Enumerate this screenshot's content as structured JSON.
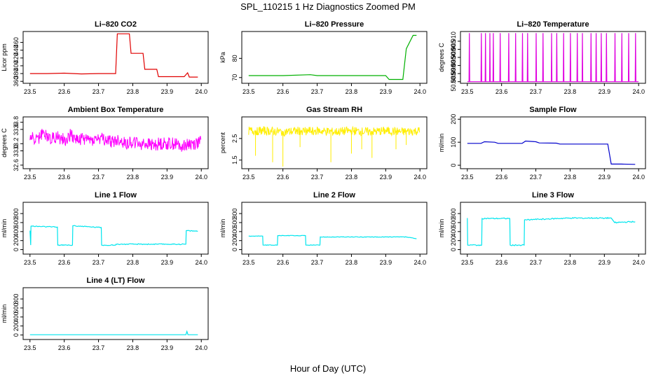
{
  "figure": {
    "title": "SPL_110215  1 Hz Diagnostics Zoomed PM",
    "xlabel": "Hour of Day (UTC)"
  },
  "chart_data": [
    {
      "type": "line",
      "title": "Li–820 CO2",
      "ylabel": "Licor ppm",
      "color": "#e00000",
      "xlim": [
        23.5,
        24.0
      ],
      "ylim": [
        355,
        488
      ],
      "xticks": [
        "23.5",
        "23.6",
        "23.7",
        "23.8",
        "23.9",
        "24.0"
      ],
      "yticks": [
        360,
        380,
        400,
        420,
        440,
        460
      ],
      "x": [
        23.5,
        23.55,
        23.6,
        23.65,
        23.7,
        23.75,
        23.755,
        23.79,
        23.795,
        23.83,
        23.835,
        23.87,
        23.875,
        23.95,
        23.96,
        23.965,
        23.99
      ],
      "values": [
        380,
        380,
        381,
        379,
        380,
        380,
        482,
        482,
        432,
        432,
        391,
        391,
        372,
        372,
        382,
        371,
        371
      ]
    },
    {
      "type": "line",
      "title": "Li–820 Pressure",
      "ylabel": "kPa",
      "color": "#00b000",
      "xlim": [
        23.5,
        24.0
      ],
      "ylim": [
        67,
        94
      ],
      "xticks": [
        "23.5",
        "23.6",
        "23.7",
        "23.8",
        "23.9",
        "24.0"
      ],
      "yticks": [
        70,
        80
      ],
      "x": [
        23.5,
        23.6,
        23.68,
        23.7,
        23.8,
        23.9,
        23.91,
        23.95,
        23.96,
        23.98,
        23.99
      ],
      "values": [
        71,
        71,
        71.5,
        71,
        71,
        71,
        69,
        69,
        85,
        92,
        92
      ]
    },
    {
      "type": "line",
      "title": "Li–820 Temperature",
      "ylabel": "degrees C",
      "color": "#e000e0",
      "xlim": [
        23.5,
        24.0
      ],
      "ylim": [
        50.884,
        50.916
      ],
      "xticks": [
        "23.5",
        "23.6",
        "23.7",
        "23.8",
        "23.9",
        "24.0"
      ],
      "yticks": [
        50.885,
        50.89,
        50.895,
        50.9,
        50.905,
        50.91
      ],
      "ytick_labels": [
        "50.885",
        "50.890",
        "50.895",
        "50.900",
        "50.905",
        "50.910"
      ],
      "x": [
        23.5,
        23.505,
        23.506,
        23.507,
        23.54,
        23.541,
        23.542,
        23.552,
        23.553,
        23.554,
        23.565,
        23.566,
        23.567,
        23.575,
        23.576,
        23.577,
        23.595,
        23.596,
        23.597,
        23.62,
        23.621,
        23.622,
        23.64,
        23.641,
        23.642,
        23.66,
        23.661,
        23.662,
        23.675,
        23.676,
        23.677,
        23.7,
        23.701,
        23.702,
        23.72,
        23.721,
        23.722,
        23.745,
        23.746,
        23.747,
        23.76,
        23.761,
        23.762,
        23.78,
        23.781,
        23.782,
        23.8,
        23.801,
        23.802,
        23.82,
        23.821,
        23.822,
        23.835,
        23.836,
        23.837,
        23.86,
        23.861,
        23.862,
        23.875,
        23.876,
        23.877,
        23.89,
        23.891,
        23.892,
        23.905,
        23.906,
        23.907,
        23.93,
        23.931,
        23.932,
        23.95,
        23.951,
        23.952,
        23.97,
        23.971,
        23.972,
        23.99,
        23.991,
        23.992,
        24.0
      ],
      "values": [
        50.885,
        50.885,
        50.915,
        50.885,
        50.885,
        50.915,
        50.885,
        50.885,
        50.915,
        50.885,
        50.885,
        50.915,
        50.885,
        50.885,
        50.915,
        50.885,
        50.885,
        50.915,
        50.885,
        50.885,
        50.915,
        50.885,
        50.885,
        50.915,
        50.885,
        50.885,
        50.915,
        50.885,
        50.885,
        50.915,
        50.885,
        50.885,
        50.915,
        50.885,
        50.885,
        50.915,
        50.885,
        50.885,
        50.915,
        50.885,
        50.885,
        50.915,
        50.885,
        50.885,
        50.915,
        50.885,
        50.885,
        50.915,
        50.885,
        50.885,
        50.915,
        50.885,
        50.885,
        50.915,
        50.885,
        50.885,
        50.915,
        50.885,
        50.885,
        50.915,
        50.885,
        50.885,
        50.915,
        50.885,
        50.885,
        50.915,
        50.885,
        50.885,
        50.915,
        50.885,
        50.885,
        50.915,
        50.885,
        50.885,
        50.915,
        50.885,
        50.885,
        50.915,
        50.885,
        50.885
      ]
    },
    {
      "type": "line",
      "title": "Ambient Box Temperature",
      "ylabel": "degrees C",
      "color": "#ff00ff",
      "xlim": [
        23.5,
        24.0
      ],
      "ylim": [
        32.5,
        33.95
      ],
      "xticks": [
        "23.5",
        "23.6",
        "23.7",
        "23.8",
        "23.9",
        "24.0"
      ],
      "yticks": [
        32.6,
        33.0,
        33.2,
        33.6,
        33.8
      ],
      "ytick_labels": [
        "32.6",
        "33.0",
        "33.2",
        "33.6",
        "33.8"
      ],
      "x": [
        23.5,
        23.52,
        23.54,
        23.56,
        23.58,
        23.6,
        23.62,
        23.64,
        23.66,
        23.68,
        23.7,
        23.72,
        23.74,
        23.76,
        23.78,
        23.8,
        23.82,
        23.84,
        23.86,
        23.88,
        23.9,
        23.92,
        23.94,
        23.96,
        23.98,
        24.0
      ],
      "values": [
        33.4,
        33.3,
        33.5,
        33.35,
        33.4,
        33.3,
        33.45,
        33.3,
        33.35,
        33.3,
        33.35,
        33.3,
        33.25,
        33.3,
        33.2,
        33.25,
        33.2,
        33.2,
        33.15,
        33.2,
        33.2,
        33.2,
        33.15,
        33.2,
        33.2,
        33.25
      ],
      "band": 0.18
    },
    {
      "type": "line",
      "title": "Gas Stream RH",
      "ylabel": "percent",
      "color": "#ffee00",
      "xlim": [
        23.5,
        24.0
      ],
      "ylim": [
        1.1,
        3.5
      ],
      "xticks": [
        "23.5",
        "23.6",
        "23.7",
        "23.8",
        "23.9",
        "24.0"
      ],
      "yticks": [
        1.5,
        2.5
      ],
      "ytick_labels": [
        "1.5",
        "2.5"
      ],
      "x": [
        23.5,
        23.55,
        23.6,
        23.65,
        23.7,
        23.75,
        23.8,
        23.85,
        23.9,
        23.95,
        24.0
      ],
      "values": [
        2.85,
        2.85,
        2.8,
        2.85,
        2.85,
        2.8,
        2.85,
        2.8,
        2.85,
        2.8,
        2.85
      ],
      "band": 0.2,
      "spikes": [
        [
          23.52,
          1.7
        ],
        [
          23.57,
          1.4
        ],
        [
          23.6,
          1.2
        ],
        [
          23.65,
          2.1
        ],
        [
          23.74,
          1.4
        ],
        [
          23.8,
          1.8
        ],
        [
          23.83,
          2.0
        ],
        [
          23.86,
          1.6
        ],
        [
          23.93,
          2.0
        ],
        [
          23.96,
          2.2
        ]
      ]
    },
    {
      "type": "line",
      "title": "Sample Flow",
      "ylabel": "ml/min",
      "color": "#0000cc",
      "xlim": [
        23.5,
        24.0
      ],
      "ylim": [
        -15,
        210
      ],
      "xticks": [
        "23.5",
        "23.6",
        "23.7",
        "23.8",
        "23.9",
        "24.0"
      ],
      "yticks": [
        0,
        100,
        200
      ],
      "x": [
        23.5,
        23.54,
        23.55,
        23.58,
        23.59,
        23.66,
        23.67,
        23.7,
        23.71,
        23.76,
        23.77,
        23.91,
        23.92,
        23.95,
        23.99
      ],
      "values": [
        95,
        95,
        102,
        100,
        95,
        95,
        105,
        102,
        97,
        96,
        92,
        92,
        5,
        5,
        4
      ]
    },
    {
      "type": "line",
      "title": "Line 1 Flow",
      "ylabel": "ml/min",
      "color": "#00e5ee",
      "xlim": [
        23.5,
        24.0
      ],
      "ylim": [
        -100,
        1050
      ],
      "xticks": [
        "23.5",
        "23.6",
        "23.7",
        "23.8",
        "23.9",
        "24.0"
      ],
      "yticks": [
        0,
        200,
        400,
        600,
        800
      ],
      "x": [
        23.5,
        23.502,
        23.503,
        23.58,
        23.581,
        23.624,
        23.625,
        23.708,
        23.709,
        23.75,
        23.751,
        23.955,
        23.956,
        23.99
      ],
      "values": [
        420,
        100,
        520,
        500,
        100,
        100,
        530,
        490,
        100,
        100,
        120,
        120,
        420,
        410
      ],
      "noise": 20
    },
    {
      "type": "line",
      "title": "Line 2 Flow",
      "ylabel": "ml/min",
      "color": "#00e5ee",
      "xlim": [
        23.5,
        24.0
      ],
      "ylim": [
        -100,
        1050
      ],
      "xticks": [
        "23.5",
        "23.6",
        "23.7",
        "23.8",
        "23.9",
        "24.0"
      ],
      "yticks": [
        0,
        200,
        400,
        600,
        800
      ],
      "x": [
        23.5,
        23.541,
        23.542,
        23.584,
        23.585,
        23.666,
        23.667,
        23.708,
        23.709,
        23.96,
        23.99
      ],
      "values": [
        300,
        300,
        100,
        100,
        310,
        310,
        100,
        100,
        280,
        280,
        240
      ],
      "noise": 12
    },
    {
      "type": "line",
      "title": "Line 3 Flow",
      "ylabel": "ml/min",
      "color": "#00e5ee",
      "xlim": [
        23.5,
        24.0
      ],
      "ylim": [
        -100,
        1050
      ],
      "xticks": [
        "23.5",
        "23.6",
        "23.7",
        "23.8",
        "23.9",
        "24.0"
      ],
      "yticks": [
        0,
        200,
        400,
        600,
        800
      ],
      "x": [
        23.5,
        23.501,
        23.502,
        23.542,
        23.543,
        23.624,
        23.625,
        23.666,
        23.667,
        23.8,
        23.92,
        23.93,
        23.99
      ],
      "values": [
        700,
        100,
        100,
        100,
        690,
        690,
        100,
        100,
        660,
        700,
        700,
        600,
        620
      ],
      "noise": 25
    },
    {
      "type": "line",
      "title": "Line 4 (LT) Flow",
      "ylabel": "ml/min",
      "color": "#00e5ee",
      "xlim": [
        23.5,
        24.0
      ],
      "ylim": [
        -100,
        1050
      ],
      "xticks": [
        "23.5",
        "23.6",
        "23.7",
        "23.8",
        "23.9",
        "24.0"
      ],
      "yticks": [
        0,
        200,
        400,
        600,
        800
      ],
      "x": [
        23.5,
        23.955,
        23.958,
        23.961,
        23.99
      ],
      "values": [
        5,
        5,
        80,
        5,
        5
      ]
    }
  ]
}
